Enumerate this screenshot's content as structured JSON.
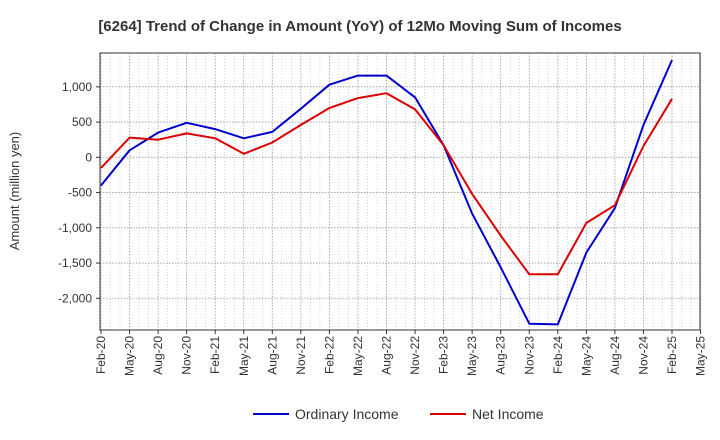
{
  "chart_data": {
    "type": "line",
    "title": "[6264]  Trend of Change in Amount (YoY) of 12Mo Moving Sum of Incomes",
    "ylabel": "Amount (million yen)",
    "xlabel": "",
    "categories": [
      "Feb-20",
      "May-20",
      "Aug-20",
      "Nov-20",
      "Feb-21",
      "May-21",
      "Aug-21",
      "Nov-21",
      "Feb-22",
      "May-22",
      "Aug-22",
      "Nov-22",
      "Feb-23",
      "May-23",
      "Aug-23",
      "Nov-23",
      "Feb-24",
      "May-24",
      "Aug-24",
      "Nov-24",
      "Feb-25",
      "May-25"
    ],
    "ylim": [
      -2450,
      1480
    ],
    "yticks": [
      1000,
      500,
      0,
      -500,
      -1000,
      -1500,
      -2000
    ],
    "ytick_labels": [
      "1,000",
      "500",
      "0",
      "-500",
      "-1,000",
      "-1,500",
      "-2,000"
    ],
    "grid": true,
    "legend_position": "bottom",
    "series": [
      {
        "name": "Ordinary Income",
        "color": "#0000cc",
        "values": [
          -400,
          100,
          350,
          490,
          400,
          270,
          360,
          690,
          1030,
          1160,
          1160,
          850,
          170,
          -800,
          -1560,
          -2360,
          -2370,
          -1350,
          -720,
          460,
          1380,
          null
        ]
      },
      {
        "name": "Net Income",
        "color": "#dd0000",
        "values": [
          -150,
          280,
          250,
          340,
          270,
          50,
          210,
          460,
          700,
          840,
          910,
          680,
          170,
          -520,
          -1110,
          -1660,
          -1660,
          -930,
          -680,
          160,
          830,
          null
        ]
      }
    ]
  }
}
